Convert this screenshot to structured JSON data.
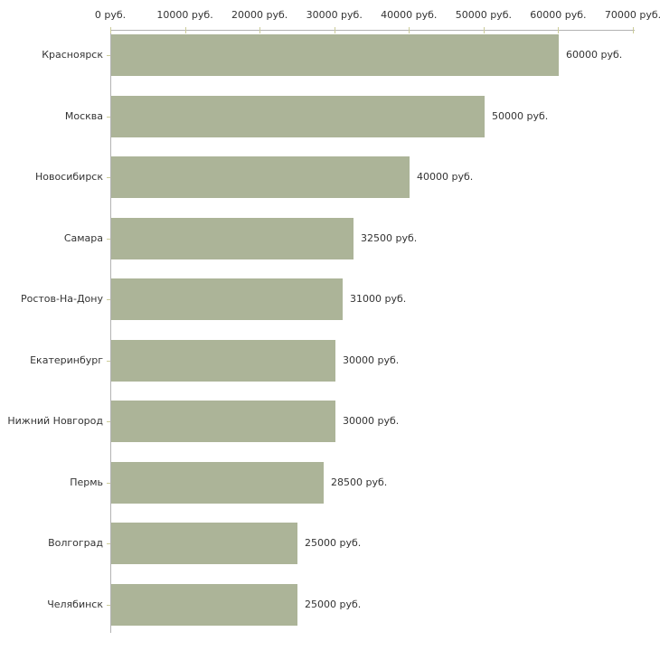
{
  "chart_data": {
    "type": "bar",
    "orientation": "horizontal",
    "title": "",
    "categories": [
      "Красноярск",
      "Москва",
      "Новосибирск",
      "Самара",
      "Ростов-На-Дону",
      "Екатеринбург",
      "Нижний Новгород",
      "Пермь",
      "Волгоград",
      "Челябинск"
    ],
    "values": [
      60000,
      50000,
      40000,
      32500,
      31000,
      30000,
      30000,
      28500,
      25000,
      25000
    ],
    "value_labels": [
      "60000 руб.",
      "50000 руб.",
      "40000 руб.",
      "32500 руб.",
      "31000 руб.",
      "30000 руб.",
      "30000 руб.",
      "28500 руб.",
      "25000 руб.",
      "25000 руб."
    ],
    "x_ticks": [
      0,
      10000,
      20000,
      30000,
      40000,
      50000,
      60000,
      70000
    ],
    "x_tick_labels": [
      "0 руб.",
      "10000 руб.",
      "20000 руб.",
      "30000 руб.",
      "40000 руб.",
      "50000 руб.",
      "60000 руб.",
      "70000 руб."
    ],
    "xlim": [
      0,
      70000
    ],
    "unit": "руб.",
    "grid": false,
    "legend": "none",
    "colors": {
      "bar": "#acb498",
      "axis": "#b3b3b3",
      "tick": "#cccc99",
      "text": "#333333",
      "background": "#ffffff"
    }
  }
}
